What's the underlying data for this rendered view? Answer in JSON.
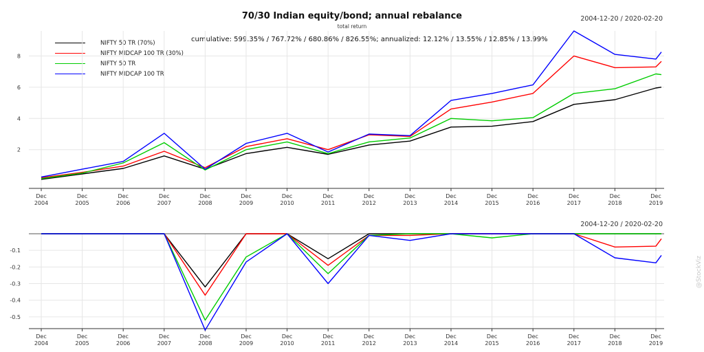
{
  "header": {
    "title": "70/30 Indian equity/bond; annual rebalance",
    "subtitle": "total return",
    "date_range_top": "2004-12-20 / 2020-02-20",
    "date_range_bottom": "2004-12-20 / 2020-02-20",
    "annotation": "cumulative: 599.35% / 767.72% / 680.86% / 826.55%; annualized: 12.12% / 13.55% / 12.85% / 13.99%",
    "watermark": "@StockViz"
  },
  "colors": {
    "nifty50_tr_70": "#000000",
    "midcap100_tr_30": "#ff0000",
    "nifty50_tr": "#00cc00",
    "midcap100_tr": "#0000ff",
    "grid": "#e6e6e6",
    "axis": "#333333"
  },
  "chart_data": [
    {
      "type": "line",
      "title": "70/30 Indian equity/bond; annual rebalance",
      "subtitle": "total return",
      "x": [
        "Dec 2004",
        "Dec 2005",
        "Dec 2006",
        "Dec 2007",
        "Dec 2008",
        "Dec 2009",
        "Dec 2010",
        "Dec 2011",
        "Dec 2012",
        "Dec 2013",
        "Dec 2014",
        "Dec 2015",
        "Dec 2016",
        "Dec 2017",
        "Dec 2018",
        "Dec 2019",
        "Feb 2020"
      ],
      "x_tick_labels": [
        [
          "Dec",
          "2004"
        ],
        [
          "Dec",
          "2005"
        ],
        [
          "Dec",
          "2006"
        ],
        [
          "Dec",
          "2007"
        ],
        [
          "Dec",
          "2008"
        ],
        [
          "Dec",
          "2009"
        ],
        [
          "Dec",
          "2010"
        ],
        [
          "Dec",
          "2011"
        ],
        [
          "Dec",
          "2012"
        ],
        [
          "Dec",
          "2013"
        ],
        [
          "Dec",
          "2014"
        ],
        [
          "Dec",
          "2015"
        ],
        [
          "Dec",
          "2016"
        ],
        [
          "Dec",
          "2017"
        ],
        [
          "Dec",
          "2018"
        ],
        [
          "Dec",
          "2019"
        ]
      ],
      "y_ticks": [
        2,
        4,
        6,
        8
      ],
      "ylim": [
        -0.3,
        9.6
      ],
      "grid": true,
      "legend_placement": "top-left",
      "series": [
        {
          "name": "NIFTY 50 TR (70%)",
          "color_key": "nifty50_tr_70",
          "values": [
            0.1,
            0.45,
            0.8,
            1.6,
            0.75,
            1.75,
            2.15,
            1.7,
            2.3,
            2.55,
            3.45,
            3.5,
            3.8,
            4.9,
            5.2,
            5.95,
            6.0
          ]
        },
        {
          "name": "NIFTY MIDCAP 100 TR (30%)",
          "color_key": "midcap100_tr_30",
          "values": [
            0.2,
            0.55,
            0.95,
            1.9,
            0.85,
            2.2,
            2.7,
            2.0,
            2.95,
            2.85,
            4.6,
            5.05,
            5.6,
            8.0,
            7.25,
            7.3,
            7.65
          ]
        },
        {
          "name": "NIFTY 50 TR",
          "color_key": "nifty50_tr",
          "values": [
            0.15,
            0.5,
            1.15,
            2.45,
            0.7,
            2.0,
            2.5,
            1.75,
            2.5,
            2.75,
            4.0,
            3.85,
            4.05,
            5.6,
            5.9,
            6.85,
            6.8
          ]
        },
        {
          "name": "NIFTY MIDCAP 100 TR",
          "color_key": "midcap100_tr",
          "values": [
            0.25,
            0.75,
            1.25,
            3.05,
            0.75,
            2.4,
            3.05,
            1.85,
            3.0,
            2.9,
            5.15,
            5.6,
            6.15,
            9.6,
            8.1,
            7.8,
            8.25
          ]
        }
      ]
    },
    {
      "type": "line",
      "title": "",
      "x": [
        "Dec 2004",
        "Dec 2005",
        "Dec 2006",
        "Dec 2007",
        "Dec 2008",
        "Dec 2009",
        "Dec 2010",
        "Dec 2011",
        "Dec 2012",
        "Dec 2013",
        "Dec 2014",
        "Dec 2015",
        "Dec 2016",
        "Dec 2017",
        "Dec 2018",
        "Dec 2019",
        "Feb 2020"
      ],
      "x_tick_labels": [
        [
          "Dec",
          "2004"
        ],
        [
          "Dec",
          "2005"
        ],
        [
          "Dec",
          "2006"
        ],
        [
          "Dec",
          "2007"
        ],
        [
          "Dec",
          "2008"
        ],
        [
          "Dec",
          "2009"
        ],
        [
          "Dec",
          "2010"
        ],
        [
          "Dec",
          "2011"
        ],
        [
          "Dec",
          "2012"
        ],
        [
          "Dec",
          "2013"
        ],
        [
          "Dec",
          "2014"
        ],
        [
          "Dec",
          "2015"
        ],
        [
          "Dec",
          "2016"
        ],
        [
          "Dec",
          "2017"
        ],
        [
          "Dec",
          "2018"
        ],
        [
          "Dec",
          "2019"
        ]
      ],
      "y_ticks": [
        -0.1,
        -0.2,
        -0.3,
        -0.4,
        -0.5
      ],
      "y_tick_labels": [
        "-0.1",
        "-0.2",
        "-0.3",
        "-0.4",
        "-0.5"
      ],
      "ylim": [
        -0.6,
        0.0
      ],
      "grid": true,
      "series": [
        {
          "color_key": "nifty50_tr_70",
          "values": [
            0,
            0,
            0,
            0,
            -0.32,
            0,
            0,
            -0.15,
            0,
            0,
            0,
            0,
            0,
            0,
            0,
            0,
            0
          ]
        },
        {
          "color_key": "midcap100_tr_30",
          "values": [
            0,
            0,
            0,
            0,
            -0.37,
            0,
            0,
            -0.19,
            -0.01,
            -0.01,
            0,
            0,
            0,
            0,
            -0.08,
            -0.075,
            -0.03
          ]
        },
        {
          "color_key": "nifty50_tr",
          "values": [
            0,
            0,
            0,
            0,
            -0.52,
            -0.14,
            0,
            -0.24,
            -0.01,
            0,
            0,
            -0.025,
            0,
            0,
            0,
            0,
            0
          ]
        },
        {
          "color_key": "midcap100_tr",
          "values": [
            0,
            0,
            0,
            0,
            -0.58,
            -0.17,
            0,
            -0.3,
            -0.01,
            -0.04,
            0,
            0,
            0,
            0,
            -0.145,
            -0.175,
            -0.13
          ]
        }
      ]
    }
  ]
}
